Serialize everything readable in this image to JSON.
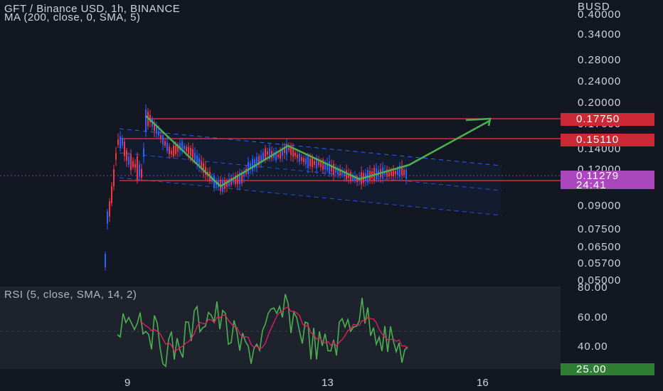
{
  "header": {
    "symbol_line": "GFT / Binance USD, 1h, BINANCE",
    "indicator_line": "MA (200, close, 0, SMA, 5)"
  },
  "price_axis": {
    "currency": "BUSD",
    "labels": [
      "0.40000",
      "0.34000",
      "0.28000",
      "0.24000",
      "0.20000",
      "0.17000",
      "0.14000",
      "0.12000",
      "0.09000",
      "0.07500",
      "0.06500",
      "0.05700",
      "0.05000"
    ]
  },
  "price_tags": {
    "resistance_top": "0.17750",
    "resistance_mid": "0.15110",
    "last_price": "0.11279",
    "countdown": "24:41"
  },
  "rsi": {
    "label": "RSI (5, close, SMA, 14, 2)",
    "axis_labels": [
      "80.00",
      "60.00",
      "40.00"
    ],
    "current_value": "25.00"
  },
  "time_axis": {
    "labels": [
      "9",
      "13",
      "16"
    ]
  },
  "colors": {
    "background": "#131722",
    "up": "#2962ff",
    "down": "#f23645",
    "support_line": "#f23645",
    "trend_arrow": "#4caf50",
    "channel": "#2962ff",
    "rsi_line": "#4caf50",
    "rsi_ma": "#e91e63",
    "last_price_tag": "#ab47bc",
    "rsi_value_tag": "#2e7d32"
  }
}
